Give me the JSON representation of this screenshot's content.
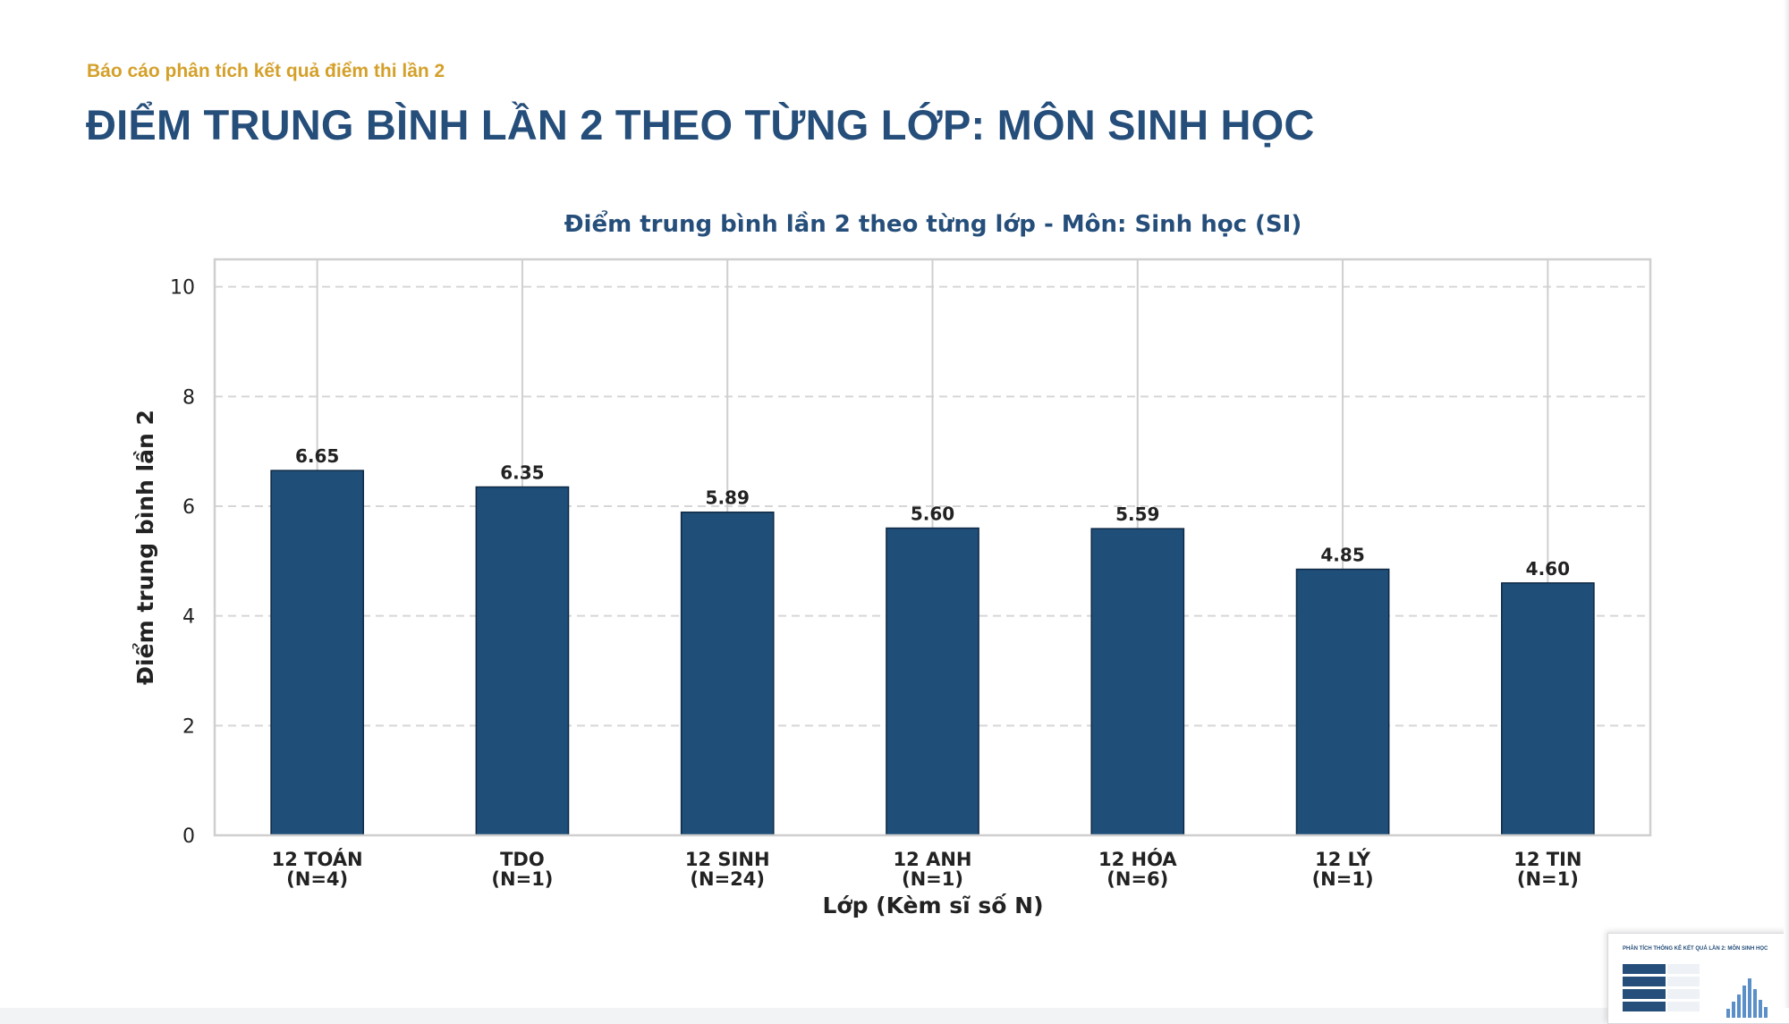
{
  "header": {
    "subtitle": "Báo cáo phân tích kết quả điểm thi lần 2",
    "title": "ĐIỂM TRUNG BÌNH LẦN 2 THEO TỪNG LỚP: MÔN SINH HỌC"
  },
  "colors": {
    "bar": "#1f4e79",
    "title": "#254e7a",
    "subtitle": "#d4a02a"
  },
  "chart_data": {
    "type": "bar",
    "title": "Điểm trung bình lần 2 theo từng lớp - Môn: Sinh học (SI)",
    "xlabel": "Lớp (Kèm sĩ số N)",
    "ylabel": "Điểm trung bình lần 2",
    "ylim": [
      0,
      10.5
    ],
    "yticks": [
      0,
      2,
      4,
      6,
      8,
      10
    ],
    "grid": true,
    "categories": [
      [
        "12 TOÁN",
        "(N=4)"
      ],
      [
        "TDO",
        "(N=1)"
      ],
      [
        "12 SINH",
        "(N=24)"
      ],
      [
        "12 ANH",
        "(N=1)"
      ],
      [
        "12 HÓA",
        "(N=6)"
      ],
      [
        "12 LÝ",
        "(N=1)"
      ],
      [
        "12 TIN",
        "(N=1)"
      ]
    ],
    "values": [
      6.65,
      6.35,
      5.89,
      5.6,
      5.59,
      4.85,
      4.6
    ],
    "labels": [
      "6.65",
      "6.35",
      "5.89",
      "5.60",
      "5.59",
      "4.85",
      "4.60"
    ]
  },
  "thumbnail": {
    "title": "PHÂN TÍCH THỐNG KÊ KẾT QUẢ LẦN 2: MÔN SINH HỌC"
  }
}
